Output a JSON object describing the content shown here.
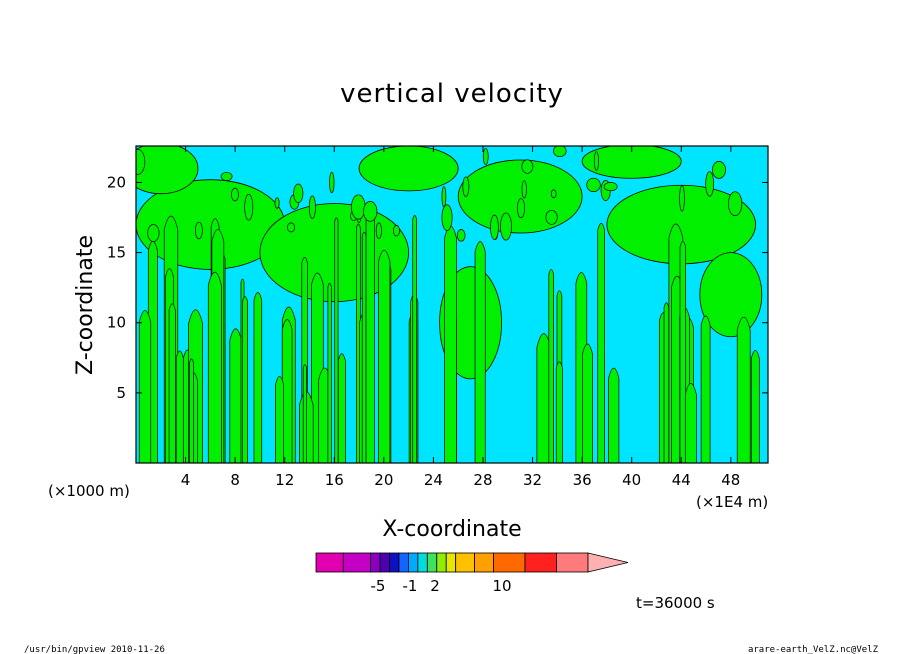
{
  "chart_data": {
    "type": "heatmap",
    "title": "vertical velocity",
    "xlabel": "X-coordinate",
    "ylabel": "Z-coordinate",
    "x_unit_left": "(×1000 m)",
    "x_unit_right": "(×1E4 m)",
    "x_ticks": [
      4,
      8,
      12,
      16,
      20,
      24,
      28,
      32,
      36,
      40,
      44,
      48
    ],
    "y_ticks": [
      5,
      10,
      15,
      20
    ],
    "xlim": [
      0,
      51
    ],
    "ylim": [
      0,
      22.6
    ],
    "grid": false,
    "field_levels": [
      {
        "name": "negative",
        "color": "#00e5ff"
      },
      {
        "name": "positive",
        "color": "#00f000"
      }
    ],
    "colorbar": {
      "colors": [
        "#e000b0",
        "#c400c4",
        "#8a00c0",
        "#5000b4",
        "#1010c0",
        "#1464ff",
        "#00aaff",
        "#00dcdc",
        "#40e060",
        "#90ec00",
        "#e6e600",
        "#ffc000",
        "#ffa000",
        "#ff6a00",
        "#ff2020",
        "#ff7a7a",
        "#ffb0b0"
      ],
      "tick_labels": [
        "-5",
        "-1",
        "2",
        "10"
      ]
    },
    "time_label": "t=36000 s"
  },
  "footer": {
    "left": "/usr/bin/gpview   2010-11-26",
    "right": "arare-earth_VelZ.nc@VelZ"
  }
}
